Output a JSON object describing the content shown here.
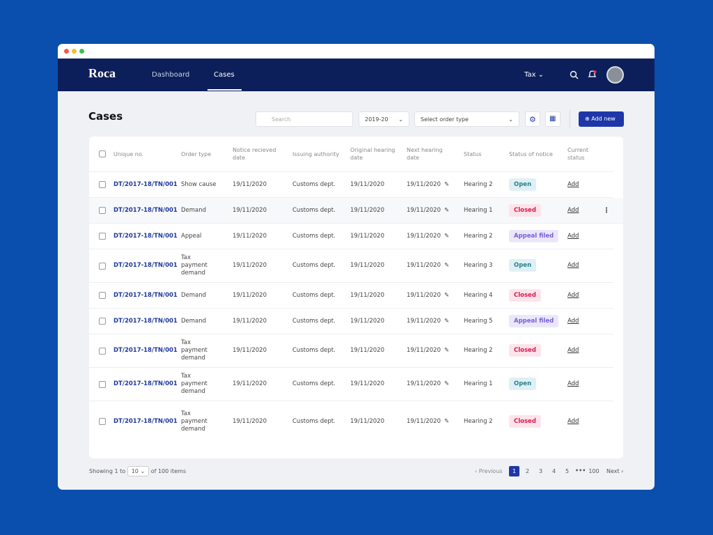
{
  "nav": {
    "logo": "Roca",
    "links": [
      "Dashboard",
      "Cases"
    ],
    "selector": "Tax"
  },
  "page": {
    "title": "Cases",
    "search_placeholder": "Search",
    "year": "2019-20",
    "order_type_placeholder": "Select order type",
    "add_button": "Add new"
  },
  "table": {
    "columns": [
      "Unique no.",
      "Order type",
      "Notice recieved date",
      "Issuing authority",
      "Original hearing date",
      "Next hearing date",
      "Status",
      "Status of notice",
      "Current status"
    ],
    "rows": [
      [
        "DT/2017-18/TN/001",
        "Show cause",
        "19/11/2020",
        "Customs dept.",
        "19/11/2020",
        "19/11/2020",
        "Hearing 2",
        "Open",
        "Add"
      ],
      [
        "DT/2017-18/TN/001",
        "Demand",
        "19/11/2020",
        "Customs dept.",
        "19/11/2020",
        "19/11/2020",
        "Hearing 1",
        "Closed",
        "Add"
      ],
      [
        "DT/2017-18/TN/001",
        "Appeal",
        "19/11/2020",
        "Customs dept.",
        "19/11/2020",
        "19/11/2020",
        "Hearing 2",
        "Appeal filed",
        "Add"
      ],
      [
        "DT/2017-18/TN/001",
        "Tax payment demand",
        "19/11/2020",
        "Customs dept.",
        "19/11/2020",
        "19/11/2020",
        "Hearing 3",
        "Open",
        "Add"
      ],
      [
        "DT/2017-18/TN/001",
        "Demand",
        "19/11/2020",
        "Customs dept.",
        "19/11/2020",
        "19/11/2020",
        "Hearing 4",
        "Closed",
        "Add"
      ],
      [
        "DT/2017-18/TN/001",
        "Demand",
        "19/11/2020",
        "Customs dept.",
        "19/11/2020",
        "19/11/2020",
        "Hearing 5",
        "Appeal filed",
        "Add"
      ],
      [
        "DT/2017-18/TN/001",
        "Tax payment demand",
        "19/11/2020",
        "Customs dept.",
        "19/11/2020",
        "19/11/2020",
        "Hearing 2",
        "Closed",
        "Add"
      ],
      [
        "DT/2017-18/TN/001",
        "Tax payment demand",
        "19/11/2020",
        "Customs dept.",
        "19/11/2020",
        "19/11/2020",
        "Hearing 1",
        "Open",
        "Add"
      ],
      [
        "DT/2017-18/TN/001",
        "Tax payment demand",
        "19/11/2020",
        "Customs dept.",
        "19/11/2020",
        "19/11/2020",
        "Hearing 2",
        "Closed",
        "Add"
      ]
    ]
  },
  "pagination": {
    "showing_prefix": "Showing 1 to",
    "page_size": "10",
    "showing_suffix": "of 100 items",
    "previous": "Previous",
    "pages": [
      1,
      2,
      3,
      4,
      5,
      100
    ],
    "next": "Next"
  }
}
